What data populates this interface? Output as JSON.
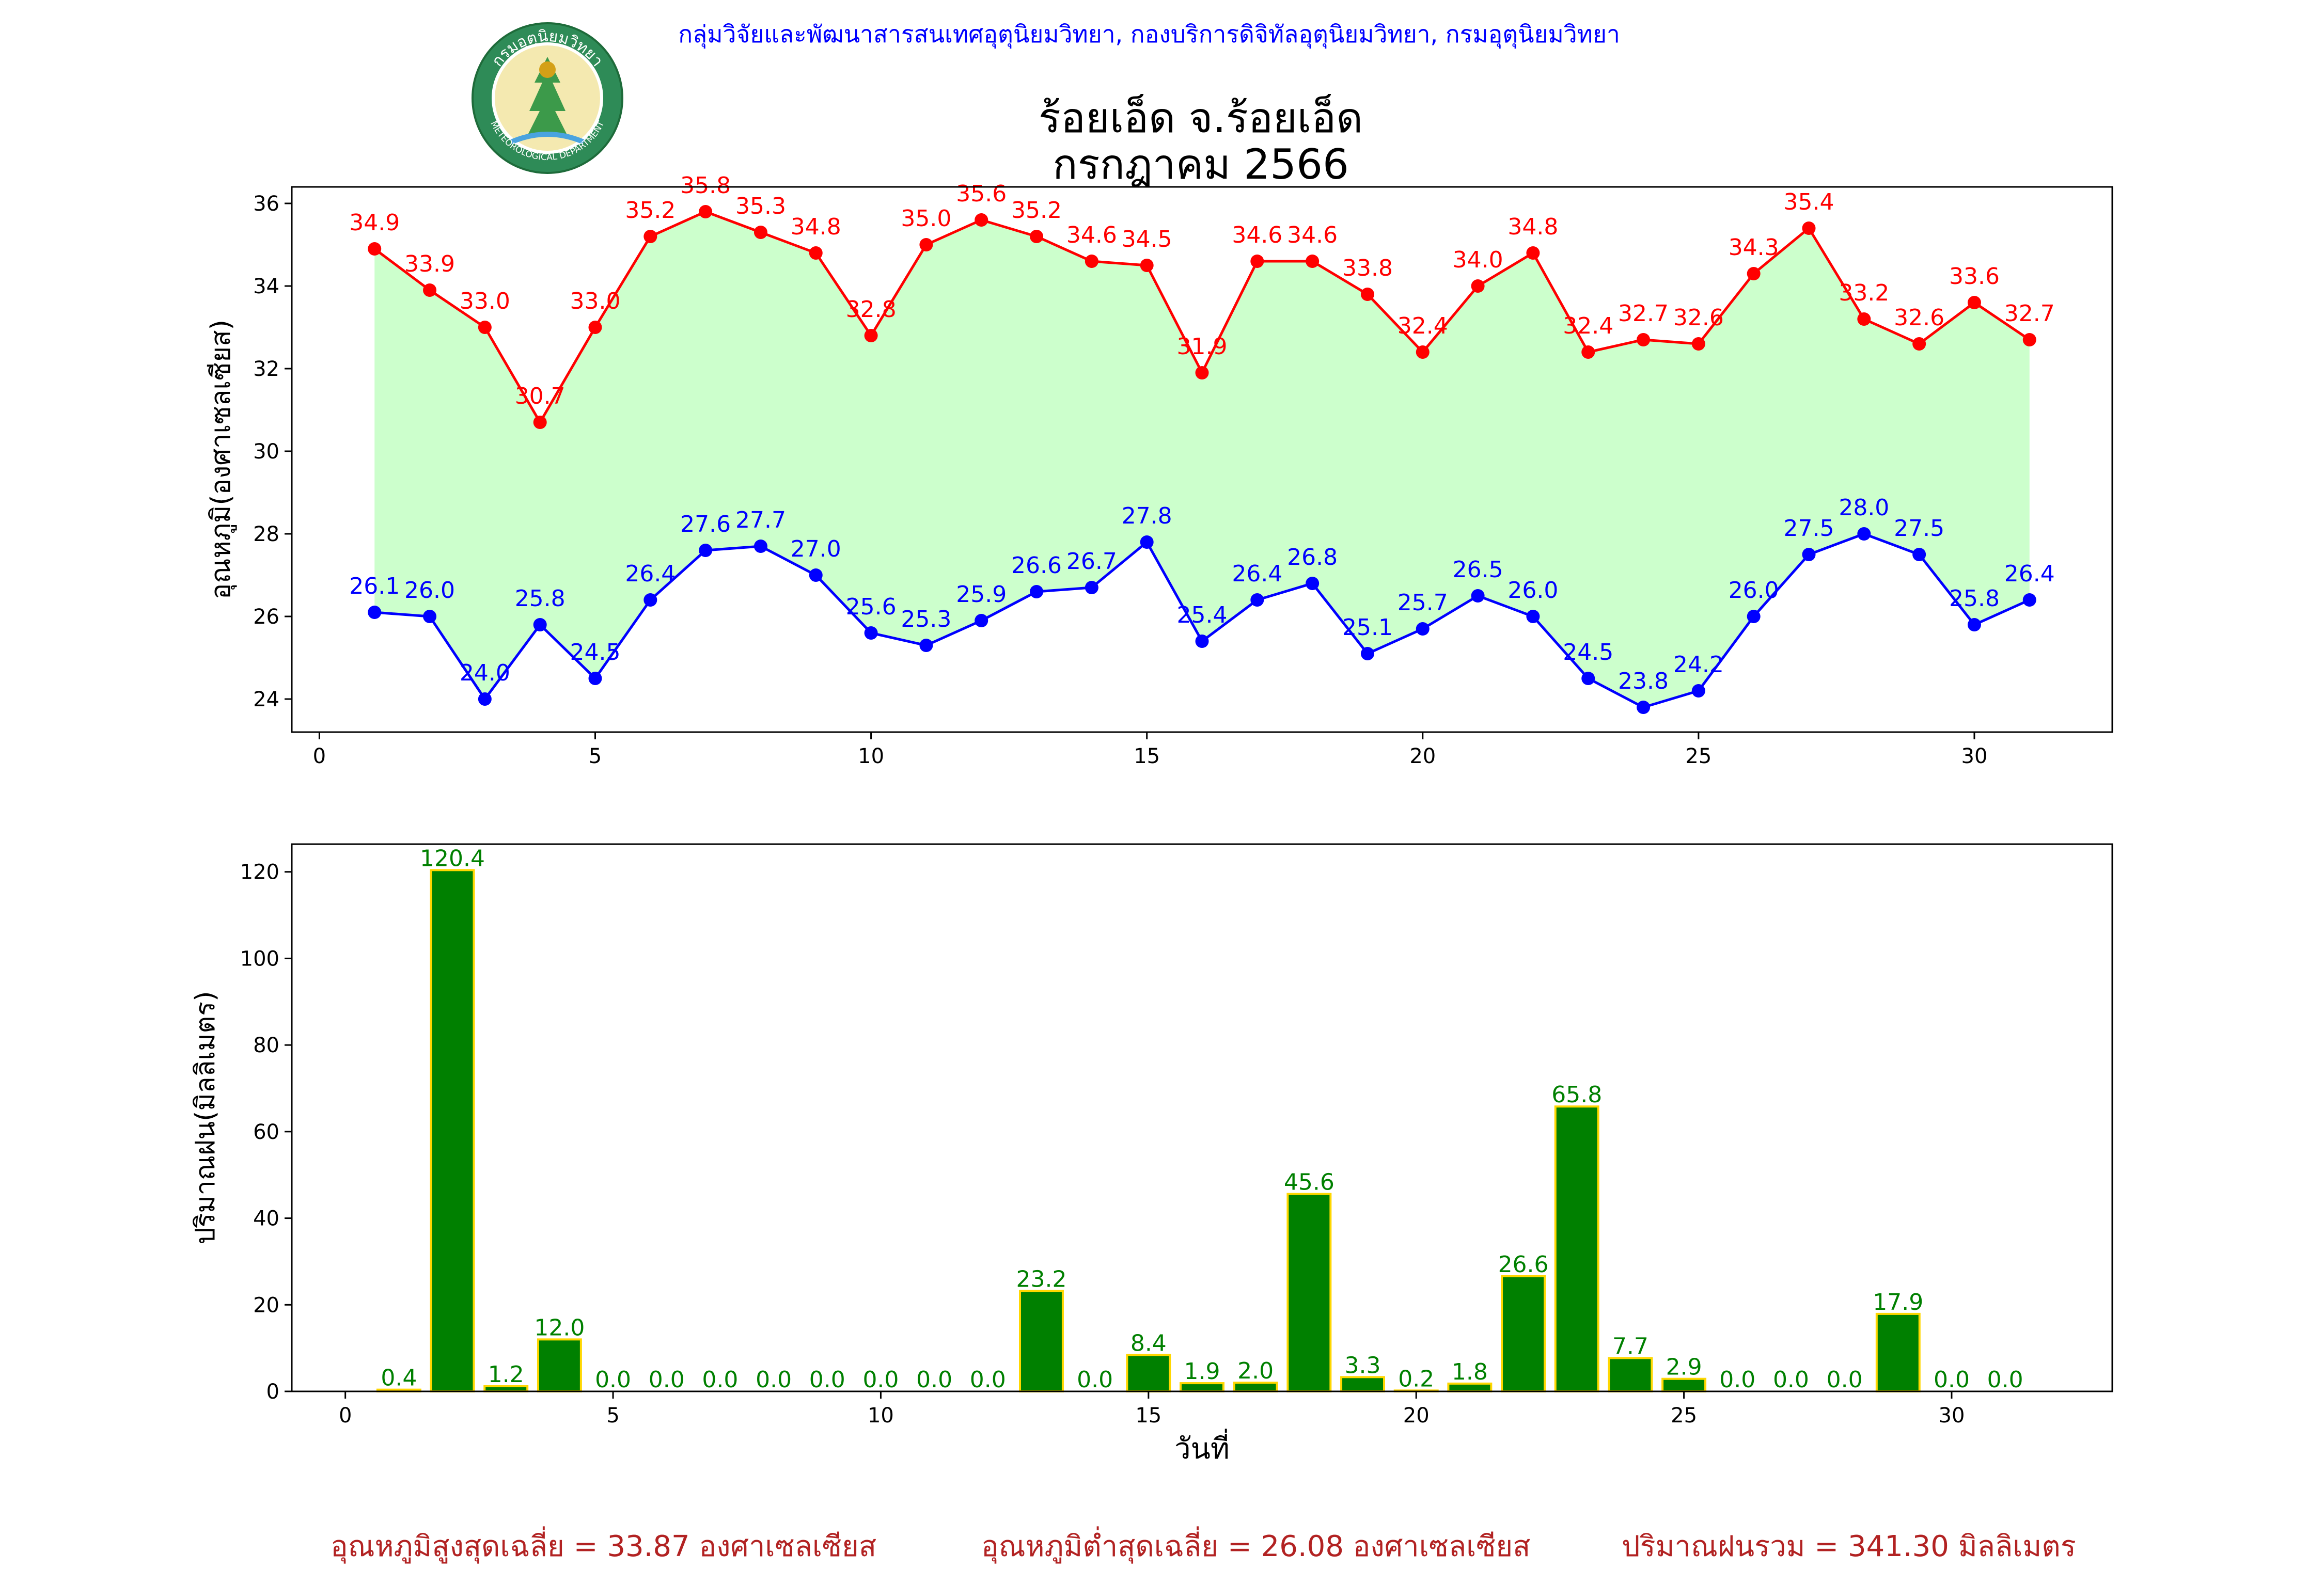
{
  "header": {
    "organization": "กลุ่มวิจัยและพัฒนาสารสนเทศอุตุนิยมวิทยา, กองบริการดิจิทัลอุตุนิยมวิทยา, กรมอุตุนิยมวิทยา",
    "title_line1": "ร้อยเอ็ด จ.ร้อยเอ็ด",
    "title_line2": "กรกฎาคม 2566",
    "logo": {
      "top_text": "กรมอุตุนิยมวิทยา",
      "bottom_text": "METEOROLOGICAL DEPARTMENT"
    }
  },
  "chart_data": [
    {
      "type": "line",
      "ylabel": "อุณหภูมิ(องศาเซลเซียส)",
      "xlabel": "",
      "x": [
        1,
        2,
        3,
        4,
        5,
        6,
        7,
        8,
        9,
        10,
        11,
        12,
        13,
        14,
        15,
        16,
        17,
        18,
        19,
        20,
        21,
        22,
        23,
        24,
        25,
        26,
        27,
        28,
        29,
        30,
        31
      ],
      "series": [
        {
          "values": [
            34.9,
            33.9,
            33.0,
            30.7,
            33.0,
            35.2,
            35.8,
            35.3,
            34.8,
            32.8,
            35.0,
            35.6,
            35.2,
            34.6,
            34.5,
            31.9,
            34.6,
            34.6,
            33.8,
            32.4,
            34.0,
            34.8,
            32.4,
            32.7,
            32.6,
            34.3,
            35.4,
            33.2,
            32.6,
            33.6,
            32.7
          ],
          "labels": [
            "34.9",
            "33.9",
            "33.0",
            "30.7",
            "33.0",
            "35.2",
            "35.8",
            "35.3",
            "34.8",
            "32.8",
            "35.0",
            "35.6",
            "35.2",
            "34.6",
            "34.5",
            "31.9",
            "34.6",
            "34.6",
            "33.8",
            "32.4",
            "34.0",
            "34.8",
            "32.4",
            "32.7",
            "32.6",
            "34.3",
            "35.4",
            "33.2",
            "32.6",
            "33.6",
            "32.7"
          ],
          "color": "#ff0000"
        },
        {
          "values": [
            26.1,
            26.0,
            24.0,
            25.8,
            24.5,
            26.4,
            27.6,
            27.7,
            27.0,
            25.6,
            25.3,
            25.9,
            26.6,
            26.7,
            27.8,
            25.4,
            26.4,
            26.8,
            25.1,
            25.7,
            26.5,
            26.0,
            24.5,
            23.8,
            24.2,
            26.0,
            27.5,
            28.0,
            27.5,
            25.8,
            26.4
          ],
          "labels": [
            "26.1",
            "26.0",
            "24.0",
            "25.8",
            "24.5",
            "26.4",
            "27.6",
            "27.7",
            "27.0",
            "25.6",
            "25.3",
            "25.9",
            "26.6",
            "26.7",
            "27.8",
            "25.4",
            "26.4",
            "26.8",
            "25.1",
            "25.7",
            "26.5",
            "26.0",
            "24.5",
            "23.8",
            "24.2",
            "26.0",
            "27.5",
            "28.0",
            "27.5",
            "25.8",
            "26.4"
          ],
          "color": "#0000ff"
        }
      ],
      "fill_color": "#ccffcc",
      "xlim": [
        -0.5,
        32.5
      ],
      "ylim": [
        23.2,
        36.4
      ],
      "xticks": [
        0,
        5,
        10,
        15,
        20,
        25,
        30
      ],
      "xtick_labels": [
        "0",
        "5",
        "10",
        "15",
        "20",
        "25",
        "30"
      ],
      "yticks": [
        24,
        26,
        28,
        30,
        32,
        34,
        36
      ],
      "ytick_labels": [
        "24",
        "26",
        "28",
        "30",
        "32",
        "34",
        "36"
      ],
      "grid": false
    },
    {
      "type": "bar",
      "ylabel": "ปริมาณฝน(มิลลิเมตร)",
      "xlabel": "วันที่",
      "x": [
        1,
        2,
        3,
        4,
        5,
        6,
        7,
        8,
        9,
        10,
        11,
        12,
        13,
        14,
        15,
        16,
        17,
        18,
        19,
        20,
        21,
        22,
        23,
        24,
        25,
        26,
        27,
        28,
        29,
        30,
        31
      ],
      "values": [
        0.4,
        120.4,
        1.2,
        12.0,
        0.0,
        0.0,
        0.0,
        0.0,
        0.0,
        0.0,
        0.0,
        0.0,
        23.2,
        0.0,
        8.4,
        1.9,
        2.0,
        45.6,
        3.3,
        0.2,
        1.8,
        26.6,
        65.8,
        7.7,
        2.9,
        0.0,
        0.0,
        0.0,
        17.9,
        0.0,
        0.0
      ],
      "labels": [
        "0.4",
        "120.4",
        "1.2",
        "12.0",
        "0.0",
        "0.0",
        "0.0",
        "0.0",
        "0.0",
        "0.0",
        "0.0",
        "0.0",
        "23.2",
        "0.0",
        "8.4",
        "1.9",
        "2.0",
        "45.6",
        "3.3",
        "0.2",
        "1.8",
        "26.6",
        "65.8",
        "7.7",
        "2.9",
        "0.0",
        "0.0",
        "0.0",
        "17.9",
        "0.0",
        "0.0"
      ],
      "bar_color": "#008000",
      "edge_color": "#ffd700",
      "label_color": "#008000",
      "xlim": [
        -1,
        33
      ],
      "ylim": [
        0,
        126.4
      ],
      "xticks": [
        0,
        5,
        10,
        15,
        20,
        25,
        30
      ],
      "xtick_labels": [
        "0",
        "5",
        "10",
        "15",
        "20",
        "25",
        "30"
      ],
      "yticks": [
        0,
        20,
        40,
        60,
        80,
        100,
        120
      ],
      "ytick_labels": [
        "0",
        "20",
        "40",
        "60",
        "80",
        "100",
        "120"
      ],
      "grid": false
    }
  ],
  "footer": {
    "avg_max": "อุณหภูมิสูงสุดเฉลี่ย = 33.87 องศาเซลเซียส",
    "avg_min": "อุณหภูมิต่ำสุดเฉลี่ย = 26.08 องศาเซลเซียส",
    "total_rain": "ปริมาณฝนรวม = 341.30 มิลลิเมตร"
  },
  "colors": {
    "header_text": "#0000ff",
    "footer_text": "#b22222",
    "logo_green": "#2e8b57"
  }
}
